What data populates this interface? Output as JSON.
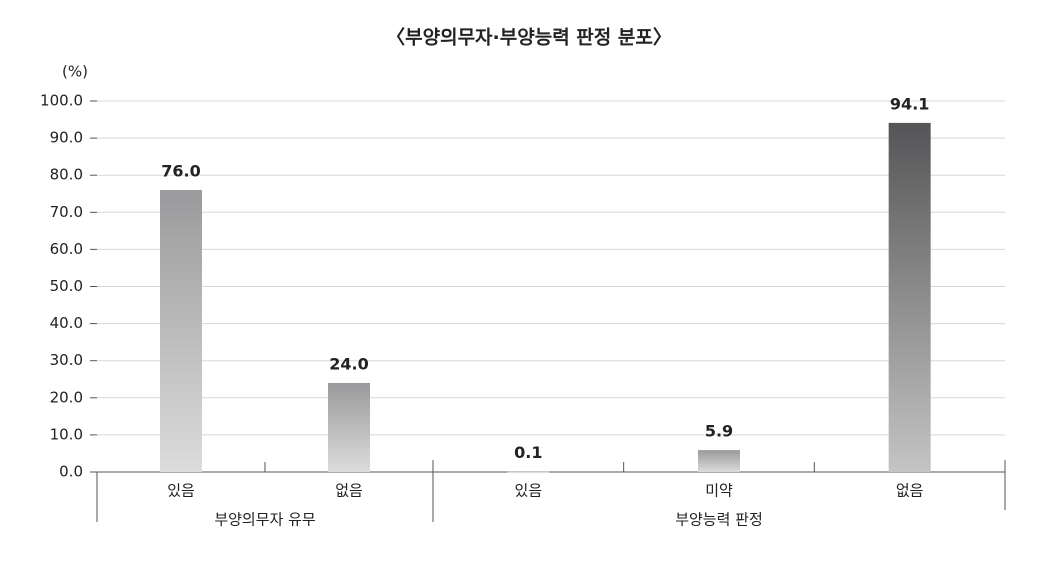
{
  "chart_data": {
    "type": "bar",
    "title": "〈부양의무자·부양능력 판정 분포〉",
    "y_unit": "(%)",
    "groups": [
      {
        "name": "부양의무자 유무",
        "categories": [
          "있음",
          "없음"
        ]
      },
      {
        "name": "부양능력 판정",
        "categories": [
          "있음",
          "미약",
          "없음"
        ]
      }
    ],
    "values": [
      76.0,
      24.0,
      0.1,
      5.9,
      94.1
    ],
    "value_labels": [
      "76.0",
      "24.0",
      "0.1",
      "5.9",
      "94.1"
    ],
    "colors": [
      "#9a9a9c",
      "#9a9a9c",
      "#9a9a9c",
      "#9a9a9c",
      "#555557"
    ],
    "ylim": [
      0,
      100
    ],
    "yticks": [
      {
        "value": 0,
        "label": "0.0"
      },
      {
        "value": 10,
        "label": "10.0"
      },
      {
        "value": 20,
        "label": "20.0"
      },
      {
        "value": 30,
        "label": "30.0"
      },
      {
        "value": 40,
        "label": "40.0"
      },
      {
        "value": 50,
        "label": "50.0"
      },
      {
        "value": 60,
        "label": "60.0"
      },
      {
        "value": 70,
        "label": "70.0"
      },
      {
        "value": 80,
        "label": "80.0"
      },
      {
        "value": 90,
        "label": "90.0"
      },
      {
        "value": 100,
        "label": "100.0"
      }
    ],
    "grid": true
  }
}
